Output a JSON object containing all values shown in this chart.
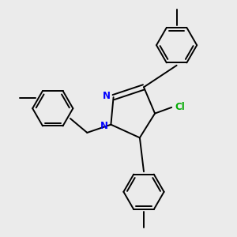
{
  "bg_color": "#ebebeb",
  "bond_color": "#000000",
  "N_color": "#0000ff",
  "Cl_color": "#00aa00",
  "line_width": 1.4,
  "figsize": [
    3.0,
    3.0
  ],
  "dpi": 100,
  "xlim": [
    -1.8,
    2.2
  ],
  "ylim": [
    -2.4,
    2.2
  ]
}
